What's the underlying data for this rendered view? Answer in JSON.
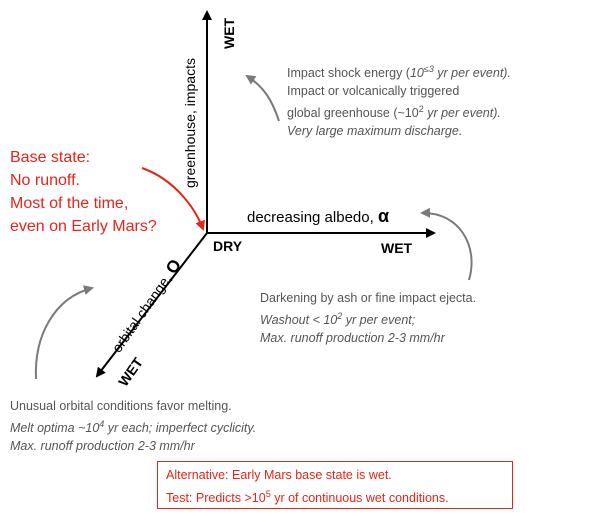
{
  "axes": {
    "vertical": {
      "label": "greenhouse, impacts",
      "end_label": "WET"
    },
    "horizontal": {
      "label": "decreasing albedo,",
      "symbol": "α",
      "end_label": "WET"
    },
    "diagonal": {
      "label": "orbital change,",
      "symbol": "O",
      "end_label": "WET"
    },
    "origin_label": "DRY"
  },
  "base_state": {
    "lines": [
      "Base state:",
      "No runoff.",
      "Most of the time,",
      "even on Early Mars?"
    ],
    "color": "#e8231a"
  },
  "notes": {
    "impact": {
      "line1_prefix": "Impact shock energy (",
      "line1_base": "10",
      "line1_exp": "≤3",
      "line1_suffix": " yr per event).",
      "line2": "Impact or volcanically triggered",
      "line3_prefix": "global greenhouse (~10",
      "line3_exp": "2",
      "line3_suffix": " yr per event).",
      "line4": "Very large maximum discharge."
    },
    "albedo": {
      "line1": "Darkening by ash or fine impact ejecta.",
      "line2_prefix": "Washout < 10",
      "line2_exp": "2",
      "line2_suffix": " yr per event;",
      "line3": "Max. runoff production 2-3 mm/hr"
    },
    "orbital": {
      "line1": "Unusual orbital conditions favor melting.",
      "line2_prefix": "Melt optima ~10",
      "line2_exp": "4",
      "line2_suffix": " yr each; imperfect cyclicity.",
      "line3": "Max. runoff production 2-3 mm/hr"
    }
  },
  "alternative": {
    "line1": "Alternative: Early Mars base state is wet.",
    "line2_prefix": "Test: Predicts >10",
    "line2_exp": "5",
    "line2_suffix": " yr of continuous wet conditions."
  },
  "colors": {
    "accent": "#e8231a",
    "note_text": "#555555",
    "curve_arrow": "#7a7a7a",
    "axis": "#000000"
  }
}
